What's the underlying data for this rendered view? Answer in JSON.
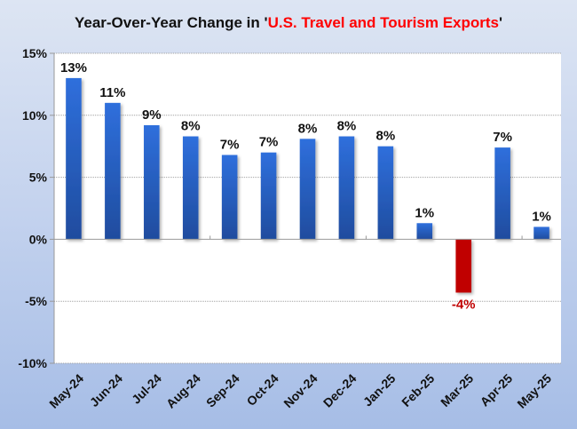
{
  "chart_data": {
    "type": "bar",
    "title_prefix": "Year-Over-Year Change in '",
    "title_highlight": "U.S. Travel and Tourism Exports",
    "title_suffix": "'",
    "xlabel": "",
    "ylabel": "",
    "categories": [
      "May-24",
      "Jun-24",
      "Jul-24",
      "Aug-24",
      "Sep-24",
      "Oct-24",
      "Nov-24",
      "Dec-24",
      "Jan-25",
      "Feb-25",
      "Mar-25",
      "Apr-25",
      "May-25"
    ],
    "values": [
      13.0,
      11.0,
      9.2,
      8.3,
      6.8,
      7.0,
      8.1,
      8.3,
      7.5,
      1.3,
      -4.3,
      7.4,
      1.0
    ],
    "data_labels": [
      "13%",
      "11%",
      "9%",
      "8%",
      "7%",
      "7%",
      "8%",
      "8%",
      "8%",
      "1%",
      "-4%",
      "7%",
      "1%"
    ],
    "ylim": [
      -10,
      15
    ],
    "yticks": [
      15,
      10,
      5,
      0,
      -5,
      -10
    ],
    "ytick_labels": [
      "15%",
      "10%",
      "5%",
      "0%",
      "-5%",
      "-10%"
    ],
    "grid": true,
    "legend": "none",
    "colors": {
      "positive_bar": "#2e6ad3",
      "negative_bar": "#c00000",
      "title_highlight": "#ff0000",
      "negative_label": "#c00000"
    }
  }
}
